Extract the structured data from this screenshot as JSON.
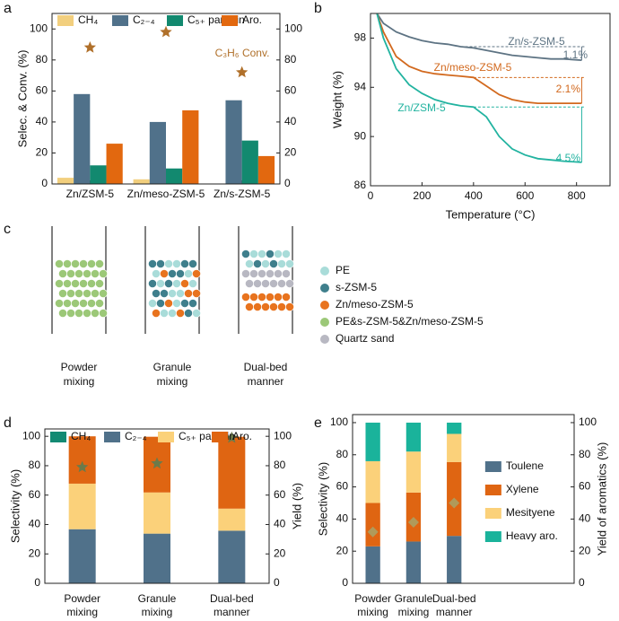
{
  "chart_data": [
    {
      "type": "bar",
      "panel_label": "a",
      "categories": [
        "Zn/ZSM-5",
        "Zn/meso-ZSM-5",
        "Zn/s-ZSM-5"
      ],
      "series": [
        {
          "name": "CH₄",
          "color": "#f2cf7e",
          "values": [
            4,
            3,
            0
          ]
        },
        {
          "name": "C₂₋₄",
          "color": "#50718a",
          "values": [
            58,
            40,
            54
          ]
        },
        {
          "name": "C₅₊ parrafin",
          "color": "#12896f",
          "values": [
            12,
            10,
            28
          ]
        },
        {
          "name": "Aro.",
          "color": "#e2680f",
          "values": [
            26,
            47.5,
            18
          ]
        },
        {
          "name": "C₃H₆ Conv.",
          "color": "#b0702a",
          "values": [
            88,
            98,
            72
          ],
          "axis": "y2",
          "marker": "star"
        }
      ],
      "ylabel": "Selec. & Conv. (%)",
      "ylim": [
        0,
        110
      ],
      "yticks": [
        0,
        20,
        40,
        60,
        80,
        100
      ],
      "y2lim": [
        0,
        110
      ],
      "y2ticks": [
        0,
        20,
        40,
        60,
        80,
        100
      ],
      "legend": "top"
    },
    {
      "type": "line",
      "panel_label": "b",
      "xlabel": "Temperature (°C)",
      "ylabel": "Weight (%)",
      "x": [
        25,
        50,
        100,
        150,
        200,
        250,
        300,
        350,
        400,
        450,
        500,
        550,
        600,
        650,
        700,
        750,
        820
      ],
      "xlim": [
        0,
        930
      ],
      "xticks": [
        0,
        200,
        400,
        600,
        800
      ],
      "ylim": [
        86,
        100
      ],
      "yticks": [
        86,
        90,
        94,
        98
      ],
      "series": [
        {
          "name": "Zn/s-ZSM-5",
          "color": "#5d7383",
          "loss_label": "1.1%",
          "values": [
            100,
            99.2,
            98.5,
            98.1,
            97.8,
            97.6,
            97.5,
            97.3,
            97.2,
            97.0,
            96.8,
            96.6,
            96.5,
            96.4,
            96.3,
            96.3,
            96.2
          ]
        },
        {
          "name": "Zn/meso-ZSM-5",
          "color": "#d2691e",
          "loss_label": "2.1%",
          "values": [
            100,
            98.5,
            96.5,
            95.7,
            95.3,
            95.1,
            95.0,
            94.9,
            94.8,
            94.1,
            93.4,
            93.0,
            92.8,
            92.7,
            92.7,
            92.7,
            92.7
          ]
        },
        {
          "name": "Zn/ZSM-5",
          "color": "#22b3a0",
          "loss_label": "4.5%",
          "values": [
            100,
            98.0,
            95.5,
            94.2,
            93.5,
            93.0,
            92.7,
            92.5,
            92.4,
            91.6,
            90.0,
            89.0,
            88.5,
            88.2,
            88.1,
            88.0,
            87.9
          ]
        }
      ]
    },
    {
      "type": "stacked_bar",
      "panel_label": "d",
      "categories": [
        "Powder mixing",
        "Granule mixing",
        "Dual-bed manner"
      ],
      "series": [
        {
          "name": "CH₄",
          "color": "#138a73",
          "values": [
            0.3,
            0.3,
            0.3
          ]
        },
        {
          "name": "C₂₋₄",
          "color": "#50718a",
          "values": [
            36.5,
            33.5,
            35.5
          ]
        },
        {
          "name": "C₅₊ paraffin",
          "color": "#fbd17a",
          "values": [
            31,
            28,
            15
          ]
        },
        {
          "name": "Aro.",
          "color": "#df6512",
          "values": [
            32.2,
            37.9,
            48.9
          ]
        },
        {
          "color": "#6b7a4a",
          "values": [
            79,
            81.5,
            99
          ],
          "axis": "y2",
          "marker": "star"
        }
      ],
      "ylabel": "Selectivity (%)",
      "y2label": "Yield (%)",
      "ylim": [
        0,
        105
      ],
      "yticks": [
        0,
        20,
        40,
        60,
        80,
        100
      ],
      "y2lim": [
        0,
        105
      ],
      "y2ticks": [
        0,
        20,
        40,
        60,
        80,
        100
      ],
      "legend": "top"
    },
    {
      "type": "stacked_bar",
      "panel_label": "e",
      "categories": [
        "Powder mixing",
        "Granule mixing",
        "Dual-bed manner"
      ],
      "series": [
        {
          "name": "Toulene",
          "color": "#50718a",
          "values": [
            23,
            26,
            29.5
          ]
        },
        {
          "name": "Xylene",
          "color": "#df6512",
          "values": [
            27,
            30.5,
            46
          ]
        },
        {
          "name": "Mesityene",
          "color": "#fbd17a",
          "values": [
            26,
            25.5,
            17.5
          ]
        },
        {
          "name": "Heavy aro.",
          "color": "#1ab39b",
          "values": [
            24,
            18,
            7
          ]
        },
        {
          "color": "#b09a5a",
          "values": [
            32,
            38,
            50
          ],
          "axis": "y2",
          "marker": "diamond"
        }
      ],
      "ylabel": "Selectivity (%)",
      "y2label": "Yield of aromatics (%)",
      "ylim": [
        0,
        105
      ],
      "yticks": [
        0,
        20,
        40,
        60,
        80,
        100
      ],
      "y2lim": [
        0,
        105
      ],
      "y2ticks": [
        0,
        20,
        40,
        60,
        80,
        100
      ],
      "legend": "right"
    }
  ],
  "diagram": {
    "panel_label": "c",
    "setups": [
      "Powder mixing",
      "Granule mixing",
      "Dual-bed manner"
    ],
    "legend": [
      {
        "label": "PE",
        "color": "#a9dcd9"
      },
      {
        "label": "s-ZSM-5",
        "color": "#3f7f8c"
      },
      {
        "label": "Zn/meso-ZSM-5",
        "color": "#e8731e"
      },
      {
        "label": "PE&s-ZSM-5&Zn/meso-ZSM-5",
        "color": "#9cc878"
      },
      {
        "label": "Quartz sand",
        "color": "#b8b8c2"
      }
    ]
  }
}
